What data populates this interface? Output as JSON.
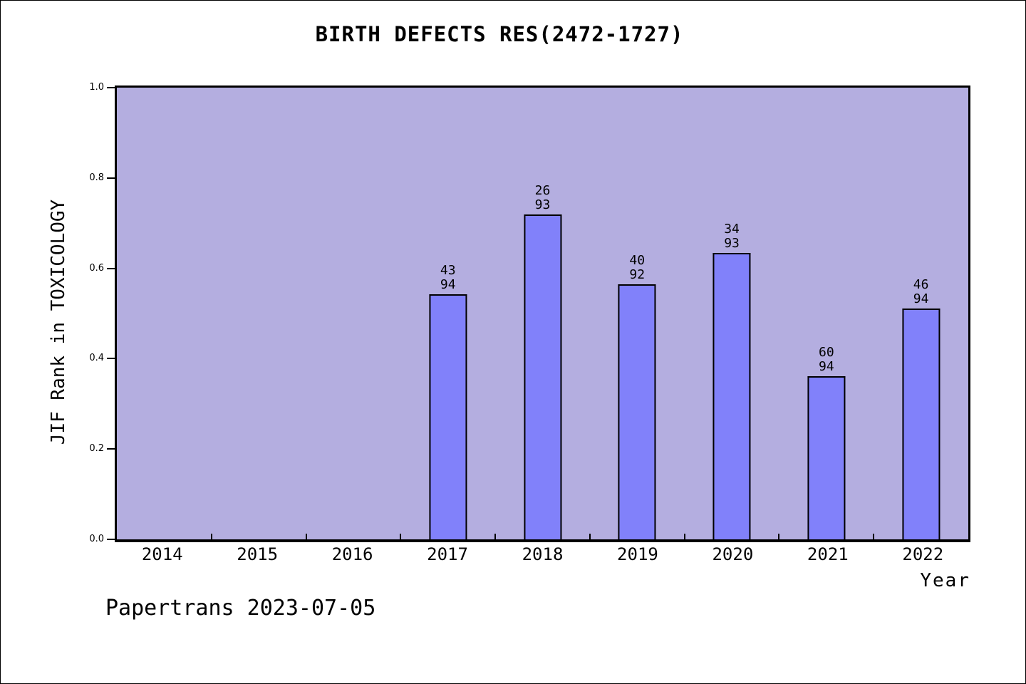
{
  "footer": {
    "text": "Papertrans 2023-07-05"
  },
  "chart_data": {
    "type": "bar",
    "title": "BIRTH DEFECTS RES(2472-1727)",
    "xlabel": "Year",
    "ylabel": "JIF Rank in TOXICOLOGY",
    "x_tick_labels": [
      "2014",
      "2015",
      "2016",
      "2017",
      "2018",
      "2019",
      "2020",
      "2021",
      "2022"
    ],
    "x_range": [
      2013.5,
      2022.5
    ],
    "ylim": [
      0.0,
      1.0
    ],
    "y_tick_labels": [
      "0.0",
      "0.2",
      "0.4",
      "0.6",
      "0.8",
      "1.0"
    ],
    "y_tick_values": [
      0.0,
      0.2,
      0.4,
      0.6,
      0.8,
      1.0
    ],
    "x_minor_tick_positions": [
      2014.5,
      2015.5,
      2016.5,
      2017.5,
      2018.5,
      2019.5,
      2020.5,
      2021.5
    ],
    "grid": false,
    "legend": null,
    "bar_width_years": 0.4,
    "bars": [
      {
        "year": 2017,
        "rank": "43",
        "total": "94",
        "value": 0.543
      },
      {
        "year": 2018,
        "rank": "26",
        "total": "93",
        "value": 0.72
      },
      {
        "year": 2019,
        "rank": "40",
        "total": "92",
        "value": 0.565
      },
      {
        "year": 2020,
        "rank": "34",
        "total": "93",
        "value": 0.634
      },
      {
        "year": 2021,
        "rank": "60",
        "total": "94",
        "value": 0.362
      },
      {
        "year": 2022,
        "rank": "46",
        "total": "94",
        "value": 0.511
      }
    ],
    "colors": {
      "plot_bg": "#b4aee0",
      "bar_fill": "#8181fa",
      "bar_border": "#000000",
      "axis": "#000000",
      "text": "#000000",
      "page_bg": "#ffffff"
    }
  }
}
